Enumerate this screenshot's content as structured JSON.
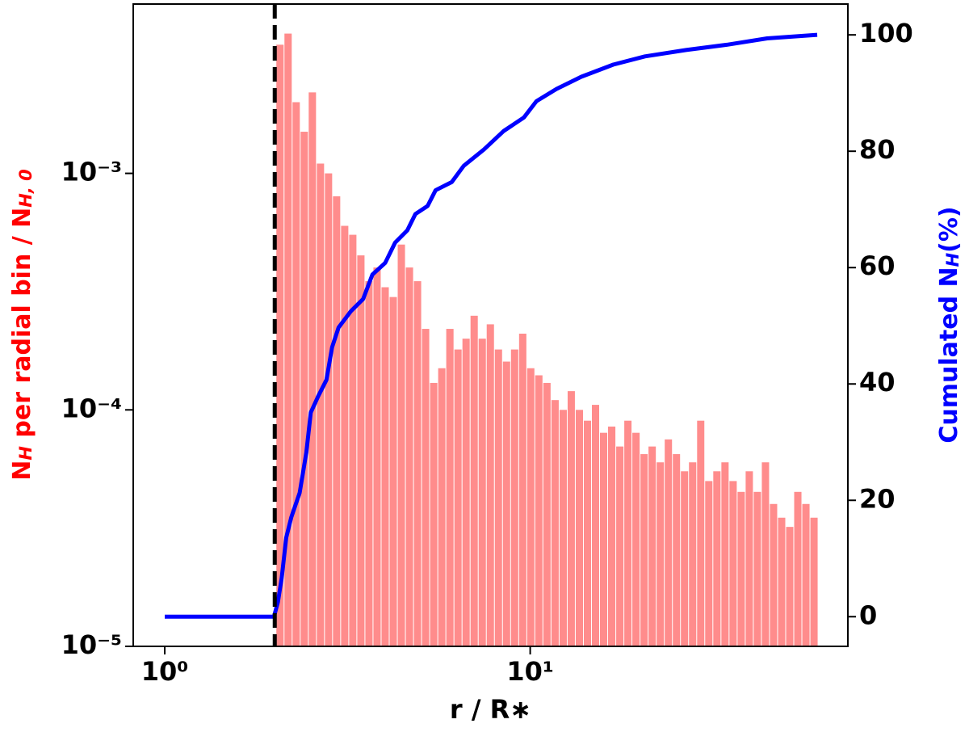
{
  "chart_data": {
    "type": "histogram",
    "xlabel": "r / R∗",
    "ylabel": {
      "parts": [
        "N",
        "H",
        " per radial bin / N",
        "H, 0"
      ]
    },
    "y2label": {
      "parts": [
        "Cumulated N",
        "H",
        "(%)"
      ]
    },
    "xlog": true,
    "ylog": true,
    "xlim": [
      0.82,
      74
    ],
    "ylim": [
      1e-05,
      0.0052
    ],
    "y2lim": [
      -5.1,
      105.3
    ],
    "xticks": [
      {
        "value": 1,
        "label": "10⁰"
      },
      {
        "value": 10,
        "label": "10¹"
      }
    ],
    "yticks": [
      {
        "value": 1e-05,
        "label": "10⁻⁵"
      },
      {
        "value": 0.0001,
        "label": "10⁻⁴"
      },
      {
        "value": 0.001,
        "label": "10⁻³"
      }
    ],
    "y2ticks": [
      0,
      20,
      40,
      60,
      80,
      100
    ],
    "color": "#ff8c8c",
    "vline": 2,
    "vline_color": "#000000",
    "bins": [
      2.02,
      2.126,
      2.237,
      2.354,
      2.477,
      2.607,
      2.743,
      2.886,
      3.037,
      3.196,
      3.363,
      3.539,
      3.724,
      3.919,
      4.124,
      4.34,
      4.567,
      4.806,
      5.057,
      5.321,
      5.6,
      5.892,
      6.201,
      6.525,
      6.866,
      7.225,
      7.603,
      8.001,
      8.419,
      8.86,
      9.323,
      9.811,
      10.32,
      10.86,
      11.43,
      12.03,
      12.66,
      13.32,
      14.02,
      14.75,
      15.52,
      16.33,
      17.19,
      18.09,
      19.03,
      20.03,
      21.07,
      22.18,
      23.34,
      24.56,
      25.84,
      27.19,
      28.62,
      30.11,
      31.69,
      33.35,
      35.09,
      36.93,
      38.86,
      40.89,
      43.03,
      45.28,
      47.65,
      50.14,
      52.76,
      55.52,
      58.43,
      61.48
    ],
    "values": [
      0.0035,
      0.0039,
      0.002,
      0.0015,
      0.0022,
      0.0011,
      0.001,
      0.0008,
      0.0006,
      0.00055,
      0.00045,
      0.00035,
      0.0004,
      0.00033,
      0.0003,
      0.0005,
      0.0004,
      0.00035,
      0.00022,
      0.00013,
      0.00015,
      0.00022,
      0.00018,
      0.0002,
      0.00025,
      0.0002,
      0.00023,
      0.00018,
      0.00016,
      0.00018,
      0.00021,
      0.00015,
      0.00014,
      0.00013,
      0.00011,
      0.0001,
      0.00012,
      0.0001,
      9e-05,
      0.000105,
      8e-05,
      8.5e-05,
      7e-05,
      9e-05,
      8e-05,
      6.5e-05,
      7e-05,
      6e-05,
      7.5e-05,
      6.5e-05,
      5.5e-05,
      6e-05,
      9e-05,
      5e-05,
      5.5e-05,
      6e-05,
      5e-05,
      4.5e-05,
      5.5e-05,
      4.5e-05,
      6e-05,
      4e-05,
      3.5e-05,
      3.2e-05,
      4.5e-05,
      4e-05,
      3.5e-05
    ],
    "series": [
      {
        "type": "line",
        "axis": "y2",
        "color": "#0000ff",
        "x": [
          1,
          1.99,
          2.04,
          2.09,
          2.15,
          2.22,
          2.34,
          2.44,
          2.51,
          2.63,
          2.77,
          2.87,
          2.99,
          3.23,
          3.49,
          3.7,
          4.01,
          4.27,
          4.61,
          4.85,
          5.24,
          5.51,
          6.1,
          6.58,
          7.47,
          8.47,
          9.61,
          10.4,
          11.8,
          13.8,
          16.9,
          20.6,
          26.7,
          34.5,
          44.5,
          61
        ],
        "values": [
          0,
          0,
          2.5,
          6.7,
          13.6,
          17.1,
          21.3,
          28.2,
          35.1,
          37.9,
          40.7,
          46.3,
          49.7,
          52.5,
          54.6,
          58.8,
          60.8,
          64.3,
          66.4,
          69.2,
          70.6,
          73.3,
          74.7,
          77.5,
          80.3,
          83.5,
          85.8,
          88.6,
          90.7,
          92.8,
          94.9,
          96.3,
          97.4,
          98.3,
          99.4,
          100
        ]
      }
    ]
  }
}
